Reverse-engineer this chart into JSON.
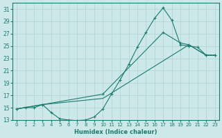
{
  "xlabel": "Humidex (Indice chaleur)",
  "background_color": "#cce8e8",
  "grid_color": "#b0d0d0",
  "line_color": "#1a7a6e",
  "xlim": [
    -0.5,
    23.5
  ],
  "ylim": [
    13,
    32
  ],
  "yticks": [
    13,
    15,
    17,
    19,
    21,
    23,
    25,
    27,
    29,
    31
  ],
  "xticks": [
    0,
    1,
    2,
    3,
    4,
    5,
    6,
    7,
    8,
    9,
    10,
    11,
    12,
    13,
    14,
    15,
    16,
    17,
    18,
    19,
    20,
    21,
    22,
    23
  ],
  "line1_x": [
    0,
    1,
    2,
    3,
    4,
    5,
    6,
    7,
    8,
    9,
    10,
    11,
    12,
    13,
    14,
    15,
    16,
    17,
    18,
    19,
    20,
    21,
    22,
    23
  ],
  "line1_y": [
    14.8,
    15.0,
    15.0,
    15.5,
    14.2,
    13.2,
    13.0,
    12.9,
    13.0,
    13.5,
    14.8,
    17.2,
    19.5,
    22.0,
    24.8,
    27.2,
    29.5,
    31.2,
    29.2,
    25.2,
    25.0,
    24.8,
    23.5,
    23.5
  ],
  "line2_x": [
    0,
    3,
    10,
    20,
    22,
    23
  ],
  "line2_y": [
    14.8,
    15.5,
    16.5,
    25.2,
    23.5,
    23.5
  ],
  "line3_x": [
    0,
    3,
    10,
    17,
    19,
    20,
    22,
    23
  ],
  "line3_y": [
    14.8,
    15.5,
    17.2,
    27.2,
    25.5,
    25.2,
    23.5,
    23.5
  ],
  "figsize": [
    3.2,
    2.0
  ],
  "dpi": 100
}
